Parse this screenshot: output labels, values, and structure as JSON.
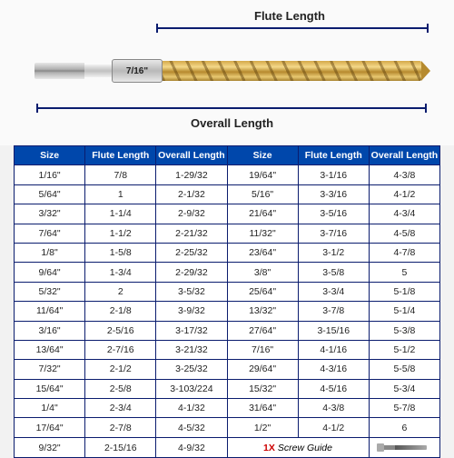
{
  "diagram": {
    "flute_label": "Flute Length",
    "overall_label": "Overall Length",
    "size_marking": "7/16\""
  },
  "columns": [
    "Size",
    "Flute Length",
    "Overall Length"
  ],
  "left_rows": [
    [
      "1/16\"",
      "7/8",
      "1-29/32"
    ],
    [
      "5/64\"",
      "1",
      "2-1/32"
    ],
    [
      "3/32\"",
      "1-1/4",
      "2-9/32"
    ],
    [
      "7/64\"",
      "1-1/2",
      "2-21/32"
    ],
    [
      "1/8\"",
      "1-5/8",
      "2-25/32"
    ],
    [
      "9/64\"",
      "1-3/4",
      "2-29/32"
    ],
    [
      "5/32\"",
      "2",
      "3-5/32"
    ],
    [
      "11/64\"",
      "2-1/8",
      "3-9/32"
    ],
    [
      "3/16\"",
      "2-5/16",
      "3-17/32"
    ],
    [
      "13/64\"",
      "2-7/16",
      "3-21/32"
    ],
    [
      "7/32\"",
      "2-1/2",
      "3-25/32"
    ],
    [
      "15/64\"",
      "2-5/8",
      "3-103/224"
    ],
    [
      "1/4\"",
      "2-3/4",
      "4-1/32"
    ],
    [
      "17/64\"",
      "2-7/8",
      "4-5/32"
    ],
    [
      "9/32\"",
      "2-15/16",
      "4-9/32"
    ]
  ],
  "right_rows": [
    [
      "19/64\"",
      "3-1/16",
      "4-3/8"
    ],
    [
      "5/16\"",
      "3-3/16",
      "4-1/2"
    ],
    [
      "21/64\"",
      "3-5/16",
      "4-3/4"
    ],
    [
      "11/32\"",
      "3-7/16",
      "4-5/8"
    ],
    [
      "23/64\"",
      "3-1/2",
      "4-7/8"
    ],
    [
      "3/8\"",
      "3-5/8",
      "5"
    ],
    [
      "25/64\"",
      "3-3/4",
      "5-1/8"
    ],
    [
      "13/32\"",
      "3-7/8",
      "5-1/4"
    ],
    [
      "27/64\"",
      "3-15/16",
      "5-3/8"
    ],
    [
      "7/16\"",
      "4-1/16",
      "5-1/2"
    ],
    [
      "29/64\"",
      "4-3/16",
      "5-5/8"
    ],
    [
      "15/32\"",
      "4-5/16",
      "5-3/4"
    ],
    [
      "31/64\"",
      "4-3/8",
      "5-7/8"
    ],
    [
      "1/2\"",
      "4-1/2",
      "6"
    ]
  ],
  "screw_guide": {
    "count": "1X",
    "label": "Screw Guide"
  },
  "colors": {
    "header_bg": "#0047ab",
    "header_text": "#ffffff",
    "border": "#0a1c6e",
    "cell_text": "#222222",
    "count_color": "#cc0000"
  }
}
